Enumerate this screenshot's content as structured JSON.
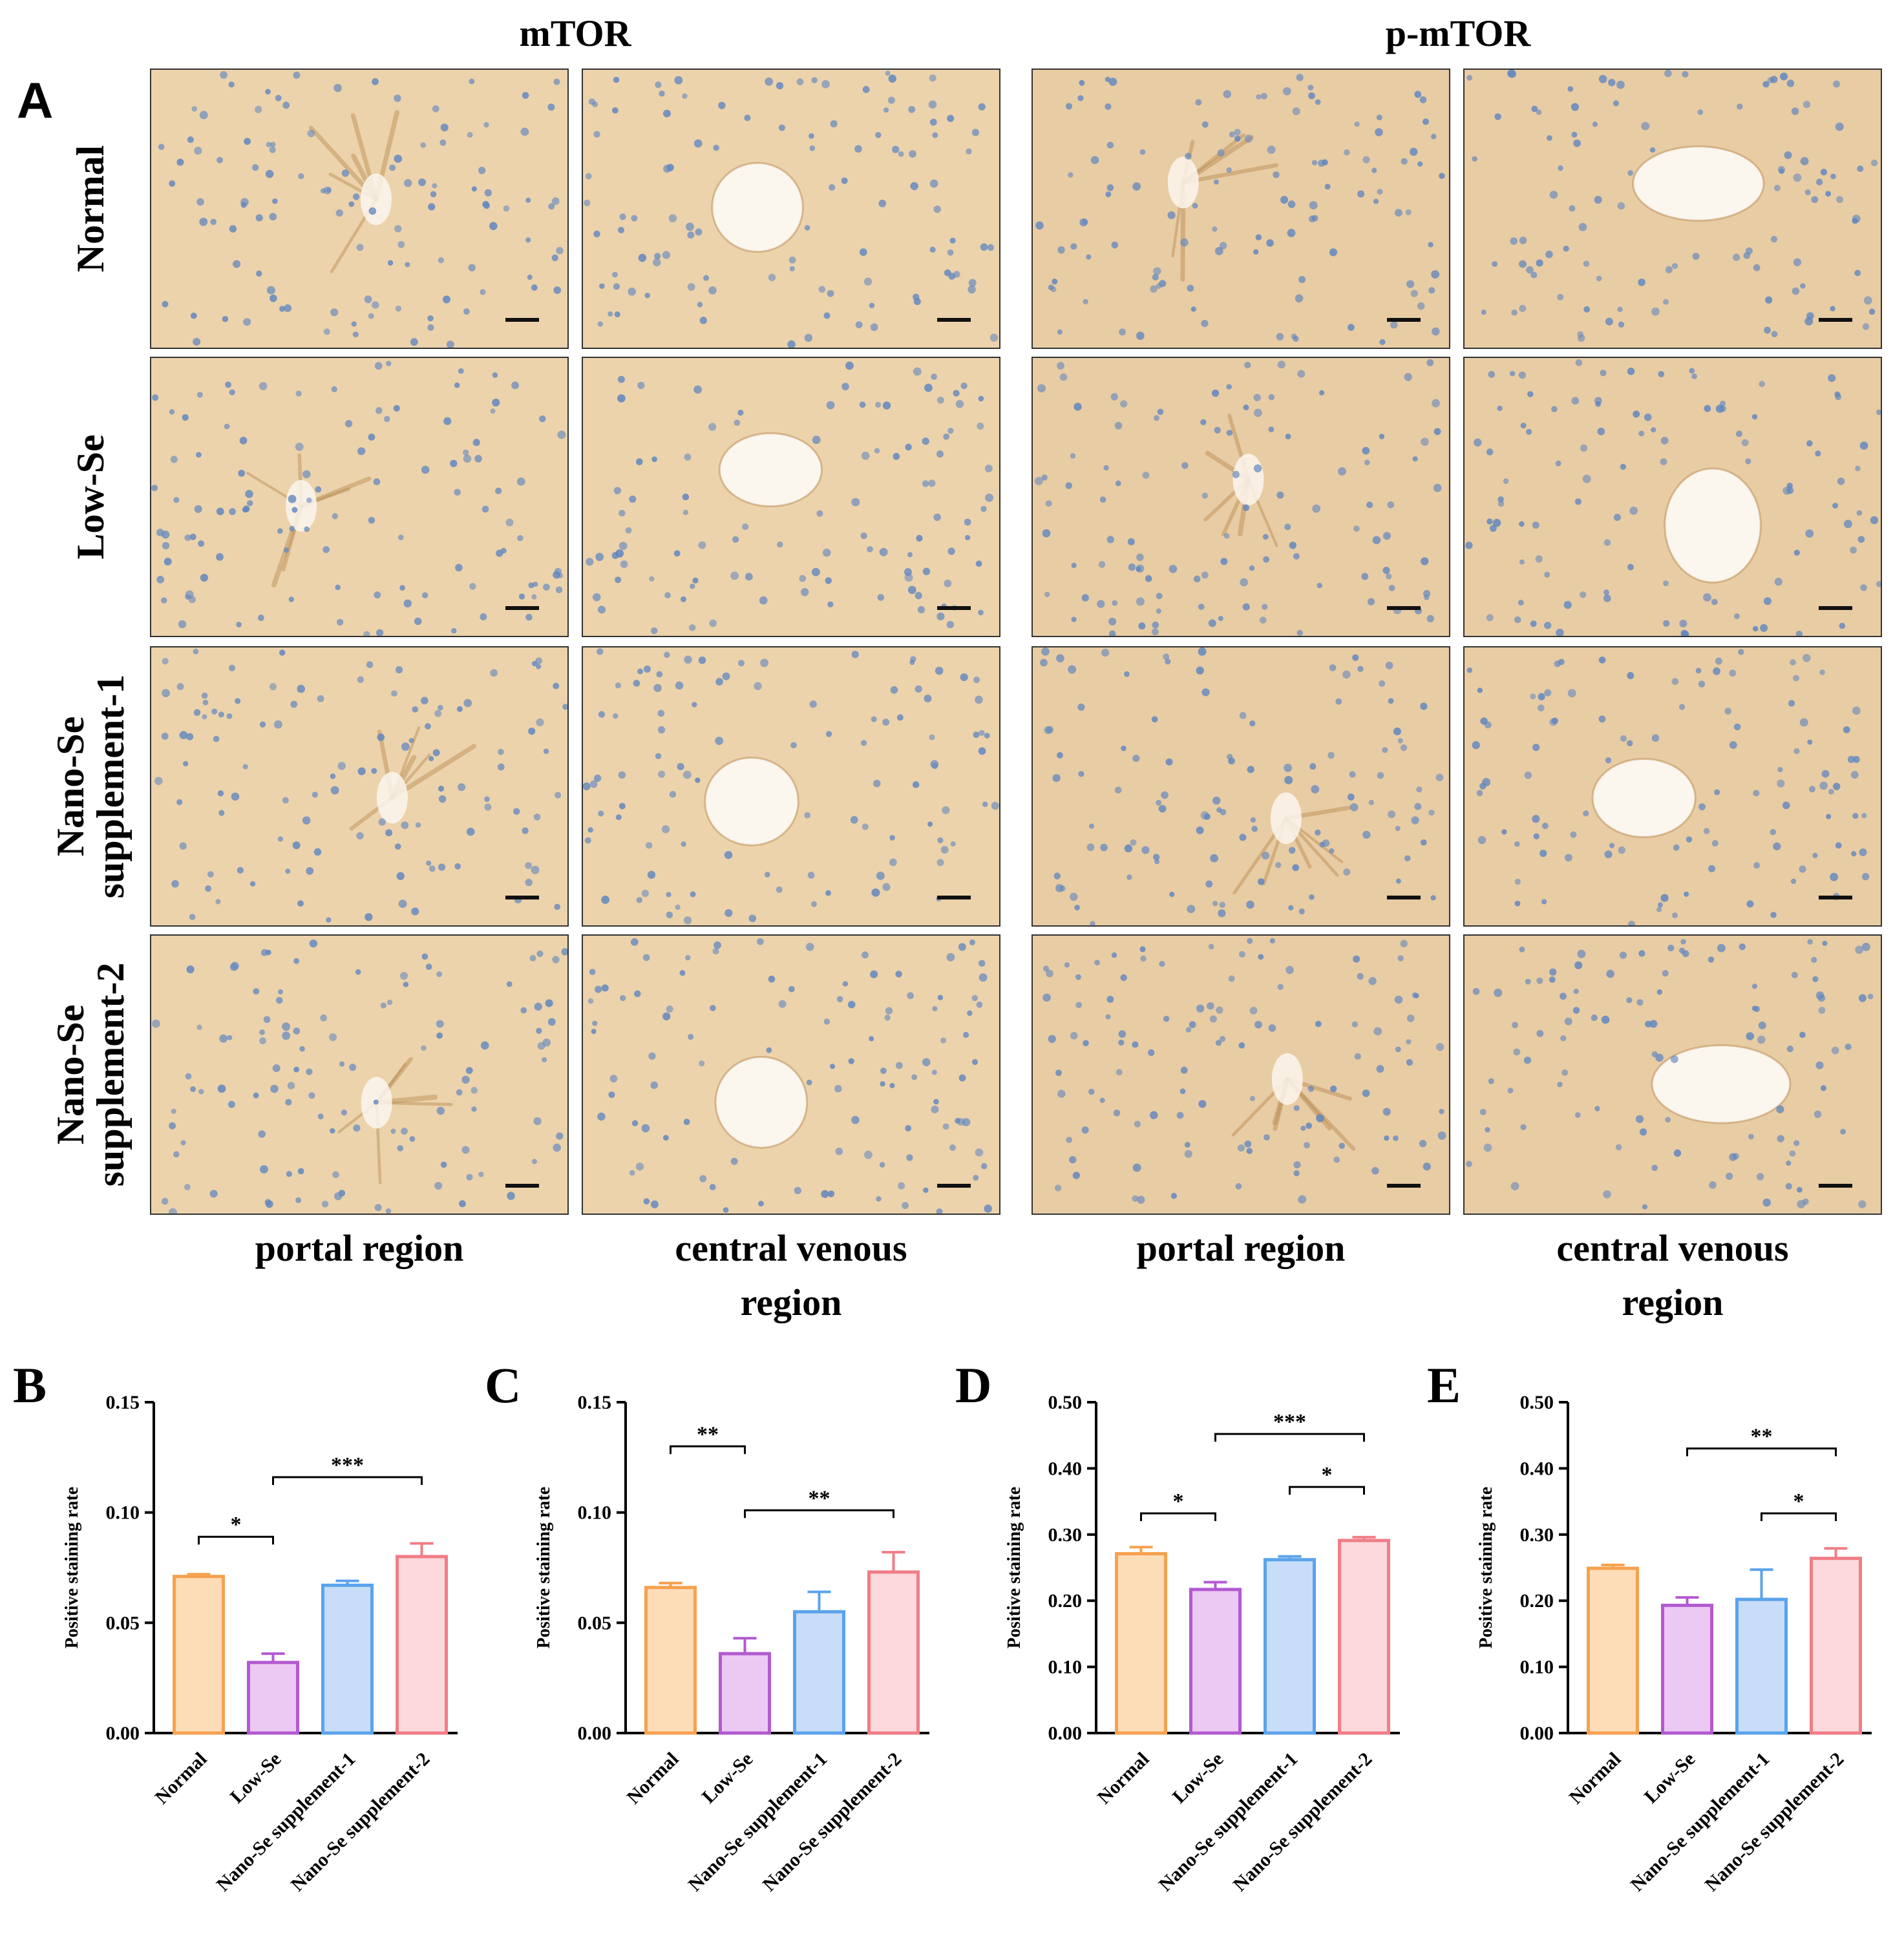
{
  "panel_a": {
    "letter": "A",
    "column_headers": [
      "mTOR",
      "p-mTOR"
    ],
    "row_labels": [
      [
        "Normal"
      ],
      [
        "Low-Se"
      ],
      [
        "Nano-Se",
        "supplement-1"
      ],
      [
        "Nano-Se",
        "supplement-2"
      ]
    ],
    "region_labels": [
      "portal region",
      "central venous region",
      "portal region",
      "central venous region"
    ],
    "region_label_lines": [
      [
        "portal region"
      ],
      [
        "central venous",
        "region"
      ],
      [
        "portal region"
      ],
      [
        "central venous",
        "region"
      ]
    ],
    "tile_types": [
      "portal",
      "central",
      "portal",
      "central"
    ],
    "stain_colors": {
      "mtor_bg": "#ecd3ac",
      "pmtor_bg": "#e8cca4",
      "nucleus": "#5f86bf",
      "brown": "#b9894f",
      "vessel": "#fbf6ee"
    }
  },
  "chart_data": [
    {
      "letter": "B",
      "type": "bar",
      "title": "",
      "xlabel": "",
      "ylabel": "Positive staining rate",
      "categories": [
        "Normal",
        "Low-Se",
        "Nano-Se supplement-1",
        "Nano-Se supplement-2"
      ],
      "values": [
        0.071,
        0.032,
        0.067,
        0.08
      ],
      "errors": [
        0.001,
        0.004,
        0.002,
        0.006
      ],
      "ylim": [
        0,
        0.15
      ],
      "yticks": [
        "0.00",
        "0.05",
        "0.10",
        "0.15"
      ],
      "ytick_values": [
        0,
        0.05,
        0.1,
        0.15
      ],
      "significance": [
        {
          "from": 0,
          "to": 1,
          "label": "*",
          "y": 0.089
        },
        {
          "from": 1,
          "to": 3,
          "label": "***",
          "y": 0.116
        }
      ]
    },
    {
      "letter": "C",
      "type": "bar",
      "title": "",
      "xlabel": "",
      "ylabel": "Positive staining rate",
      "categories": [
        "Normal",
        "Low-Se",
        "Nano-Se supplement-1",
        "Nano-Se supplement-2"
      ],
      "values": [
        0.066,
        0.036,
        0.055,
        0.073
      ],
      "errors": [
        0.002,
        0.007,
        0.009,
        0.009
      ],
      "ylim": [
        0,
        0.15
      ],
      "yticks": [
        "0.00",
        "0.05",
        "0.10",
        "0.15"
      ],
      "ytick_values": [
        0,
        0.05,
        0.1,
        0.15
      ],
      "significance": [
        {
          "from": 0,
          "to": 1,
          "label": "**",
          "y": 0.13
        },
        {
          "from": 1,
          "to": 3,
          "label": "**",
          "y": 0.101
        }
      ]
    },
    {
      "letter": "D",
      "type": "bar",
      "title": "",
      "xlabel": "",
      "ylabel": "Positive staining rate",
      "categories": [
        "Normal",
        "Low-Se",
        "Nano-Se supplement-1",
        "Nano-Se supplement-2"
      ],
      "values": [
        0.271,
        0.217,
        0.262,
        0.291
      ],
      "errors": [
        0.01,
        0.011,
        0.005,
        0.005
      ],
      "ylim": [
        0,
        0.5
      ],
      "yticks": [
        "0.00",
        "0.10",
        "0.20",
        "0.30",
        "0.40",
        "0.50"
      ],
      "ytick_values": [
        0,
        0.1,
        0.2,
        0.3,
        0.4,
        0.5
      ],
      "significance": [
        {
          "from": 0,
          "to": 1,
          "label": "*",
          "y": 0.332
        },
        {
          "from": 1,
          "to": 3,
          "label": "***",
          "y": 0.452
        },
        {
          "from": 2,
          "to": 3,
          "label": "*",
          "y": 0.372
        }
      ]
    },
    {
      "letter": "E",
      "type": "bar",
      "title": "",
      "xlabel": "",
      "ylabel": "Positive staining rate",
      "categories": [
        "Normal",
        "Low-Se",
        "Nano-Se supplement-1",
        "Nano-Se supplement-2"
      ],
      "values": [
        0.249,
        0.193,
        0.202,
        0.264
      ],
      "errors": [
        0.005,
        0.012,
        0.045,
        0.015
      ],
      "ylim": [
        0,
        0.5
      ],
      "yticks": [
        "0.00",
        "0.10",
        "0.20",
        "0.30",
        "0.40",
        "0.50"
      ],
      "ytick_values": [
        0,
        0.1,
        0.2,
        0.3,
        0.4,
        0.5
      ],
      "significance": [
        {
          "from": 1,
          "to": 3,
          "label": "**",
          "y": 0.43
        },
        {
          "from": 2,
          "to": 3,
          "label": "*",
          "y": 0.332
        }
      ]
    }
  ],
  "bar_colors": {
    "fills": [
      "#fddcb8",
      "#ecc9f2",
      "#c8ddf7",
      "#fcd9dc"
    ],
    "strokes": [
      "#f6a14f",
      "#b35ad0",
      "#5ba3ec",
      "#f07d86"
    ]
  }
}
